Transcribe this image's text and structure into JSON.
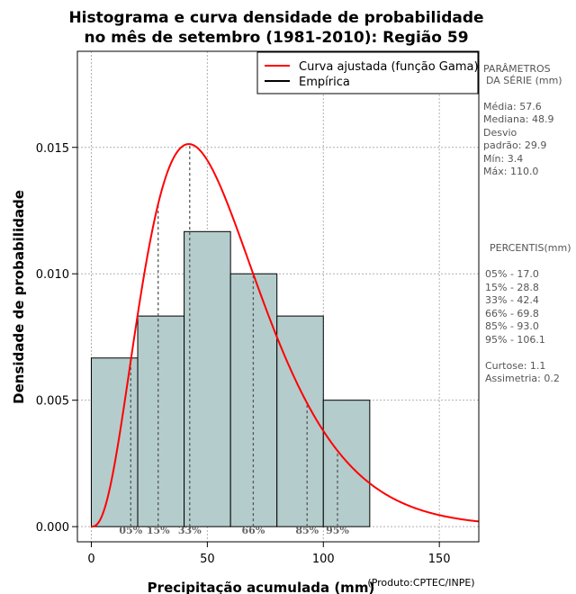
{
  "chart_data": {
    "type": "bar",
    "title_line1": "Histograma e curva densidade de probabilidade",
    "title_line2": "no mês de setembro (1981-2010): Região 59",
    "xlabel": "Precipitação acumulada (mm)",
    "ylabel": "Densidade de probabilidade",
    "credit": "(Produto:CPTEC/INPE)",
    "xlim": [
      -6,
      167
    ],
    "ylim": [
      -0.0006,
      0.0188
    ],
    "x_ticks": [
      0,
      50,
      100,
      150
    ],
    "x_tick_labels": [
      "0",
      "50",
      "100",
      "150"
    ],
    "y_ticks": [
      0.0,
      0.005,
      0.01,
      0.015
    ],
    "y_tick_labels": [
      "0.000",
      "0.005",
      "0.010",
      "0.015"
    ],
    "grid": true,
    "bins": [
      {
        "start": 0,
        "end": 20,
        "density": 0.00667
      },
      {
        "start": 20,
        "end": 40,
        "density": 0.00833
      },
      {
        "start": 40,
        "end": 60,
        "density": 0.01167
      },
      {
        "start": 60,
        "end": 80,
        "density": 0.01
      },
      {
        "start": 80,
        "end": 100,
        "density": 0.00833
      },
      {
        "start": 100,
        "end": 120,
        "density": 0.005
      }
    ],
    "gamma_curve": {
      "name": "Curva ajustada (função Gama)",
      "shape": 3.7,
      "scale": 15.56,
      "color": "#ff0000"
    },
    "empirical": {
      "name": "Empírica",
      "color": "#000000"
    },
    "legend_position": "top-right",
    "percentile_markers": [
      {
        "label": "05%",
        "x": 17.0
      },
      {
        "label": "15%",
        "x": 28.8
      },
      {
        "label": "33%",
        "x": 42.4
      },
      {
        "label": "66%",
        "x": 69.8
      },
      {
        "label": "85%",
        "x": 93.0
      },
      {
        "label": "95%",
        "x": 106.1
      }
    ],
    "colors": {
      "bar_fill": "#b4cccc",
      "bar_stroke": "#000000",
      "curve": "#ff0000",
      "grid": "#b0b0b0",
      "marker": "#555555"
    }
  },
  "side_panel": {
    "params_title_1": "PARÂMETROS",
    "params_title_2": "DA SÉRIE (mm)",
    "media": "Média:  57.6",
    "mediana": "Mediana:  48.9",
    "desvio_1": "Desvio",
    "desvio_2": "padrão:  29.9",
    "min": "Mín:  3.4",
    "max": "Máx:  110.0",
    "percentis_title": "PERCENTIS(mm)",
    "p05": "05% -  17.0",
    "p15": "15% -  28.8",
    "p33": "33% -  42.4",
    "p66": "66% -  69.8",
    "p85": "85% -  93.0",
    "p95": "95% -  106.1",
    "curtose": "Curtose:  1.1",
    "assimetria": "Assimetria:  0.2"
  }
}
